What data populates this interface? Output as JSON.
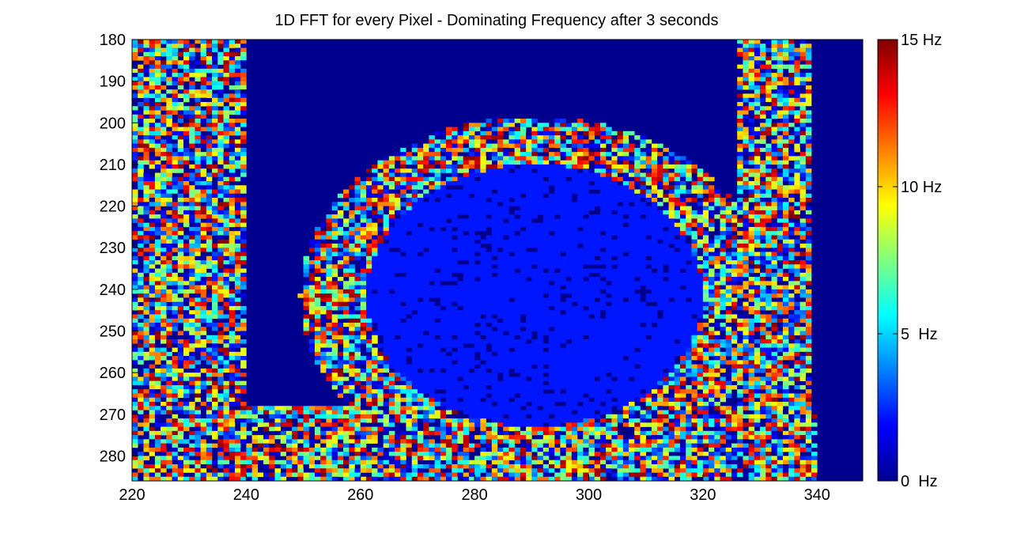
{
  "chart_data": {
    "type": "heatmap",
    "title": "1D FFT for every Pixel - Dominating Frequency after 3 seconds",
    "xlabel": "",
    "ylabel": "",
    "xlim": [
      220,
      348
    ],
    "ylim": [
      180,
      286
    ],
    "y_reversed": true,
    "xticks": [
      220,
      240,
      260,
      280,
      300,
      320,
      340
    ],
    "yticks": [
      180,
      190,
      200,
      210,
      220,
      230,
      240,
      250,
      260,
      270,
      280
    ],
    "grid": false,
    "colormap": "jet",
    "color_range": [
      0,
      15
    ],
    "colorbar": {
      "position": "right",
      "ticks": [
        {
          "value": 0,
          "label": "0  Hz"
        },
        {
          "value": 5,
          "label": "5  Hz"
        },
        {
          "value": 10,
          "label": "10 Hz"
        },
        {
          "value": 15,
          "label": "15 Hz"
        }
      ]
    },
    "regions": [
      {
        "description_value": "background",
        "value_hz": 0.2
      },
      {
        "description_value": "central ellipse fill",
        "value_hz": 2.2,
        "center": [
          290.5,
          241.5
        ],
        "radius": [
          29.5,
          31.5
        ]
      },
      {
        "description_value": "noisy ring around ellipse",
        "value_range_hz": [
          0,
          15
        ],
        "center": [
          290.5,
          241.5
        ],
        "radius": [
          41,
          43
        ]
      },
      {
        "description_value": "noisy left band",
        "value_range_hz": [
          0,
          15
        ],
        "x_range": [
          220,
          240
        ],
        "y_range": [
          180,
          286
        ]
      },
      {
        "description_value": "noisy right band",
        "value_range_hz": [
          0,
          15
        ],
        "x_range": [
          326,
          339
        ],
        "y_range": [
          180,
          286
        ]
      },
      {
        "description_value": "noisy bottom band",
        "value_range_hz": [
          0,
          15
        ],
        "x_range": [
          238,
          340
        ],
        "y_range": [
          268,
          286
        ]
      }
    ]
  }
}
